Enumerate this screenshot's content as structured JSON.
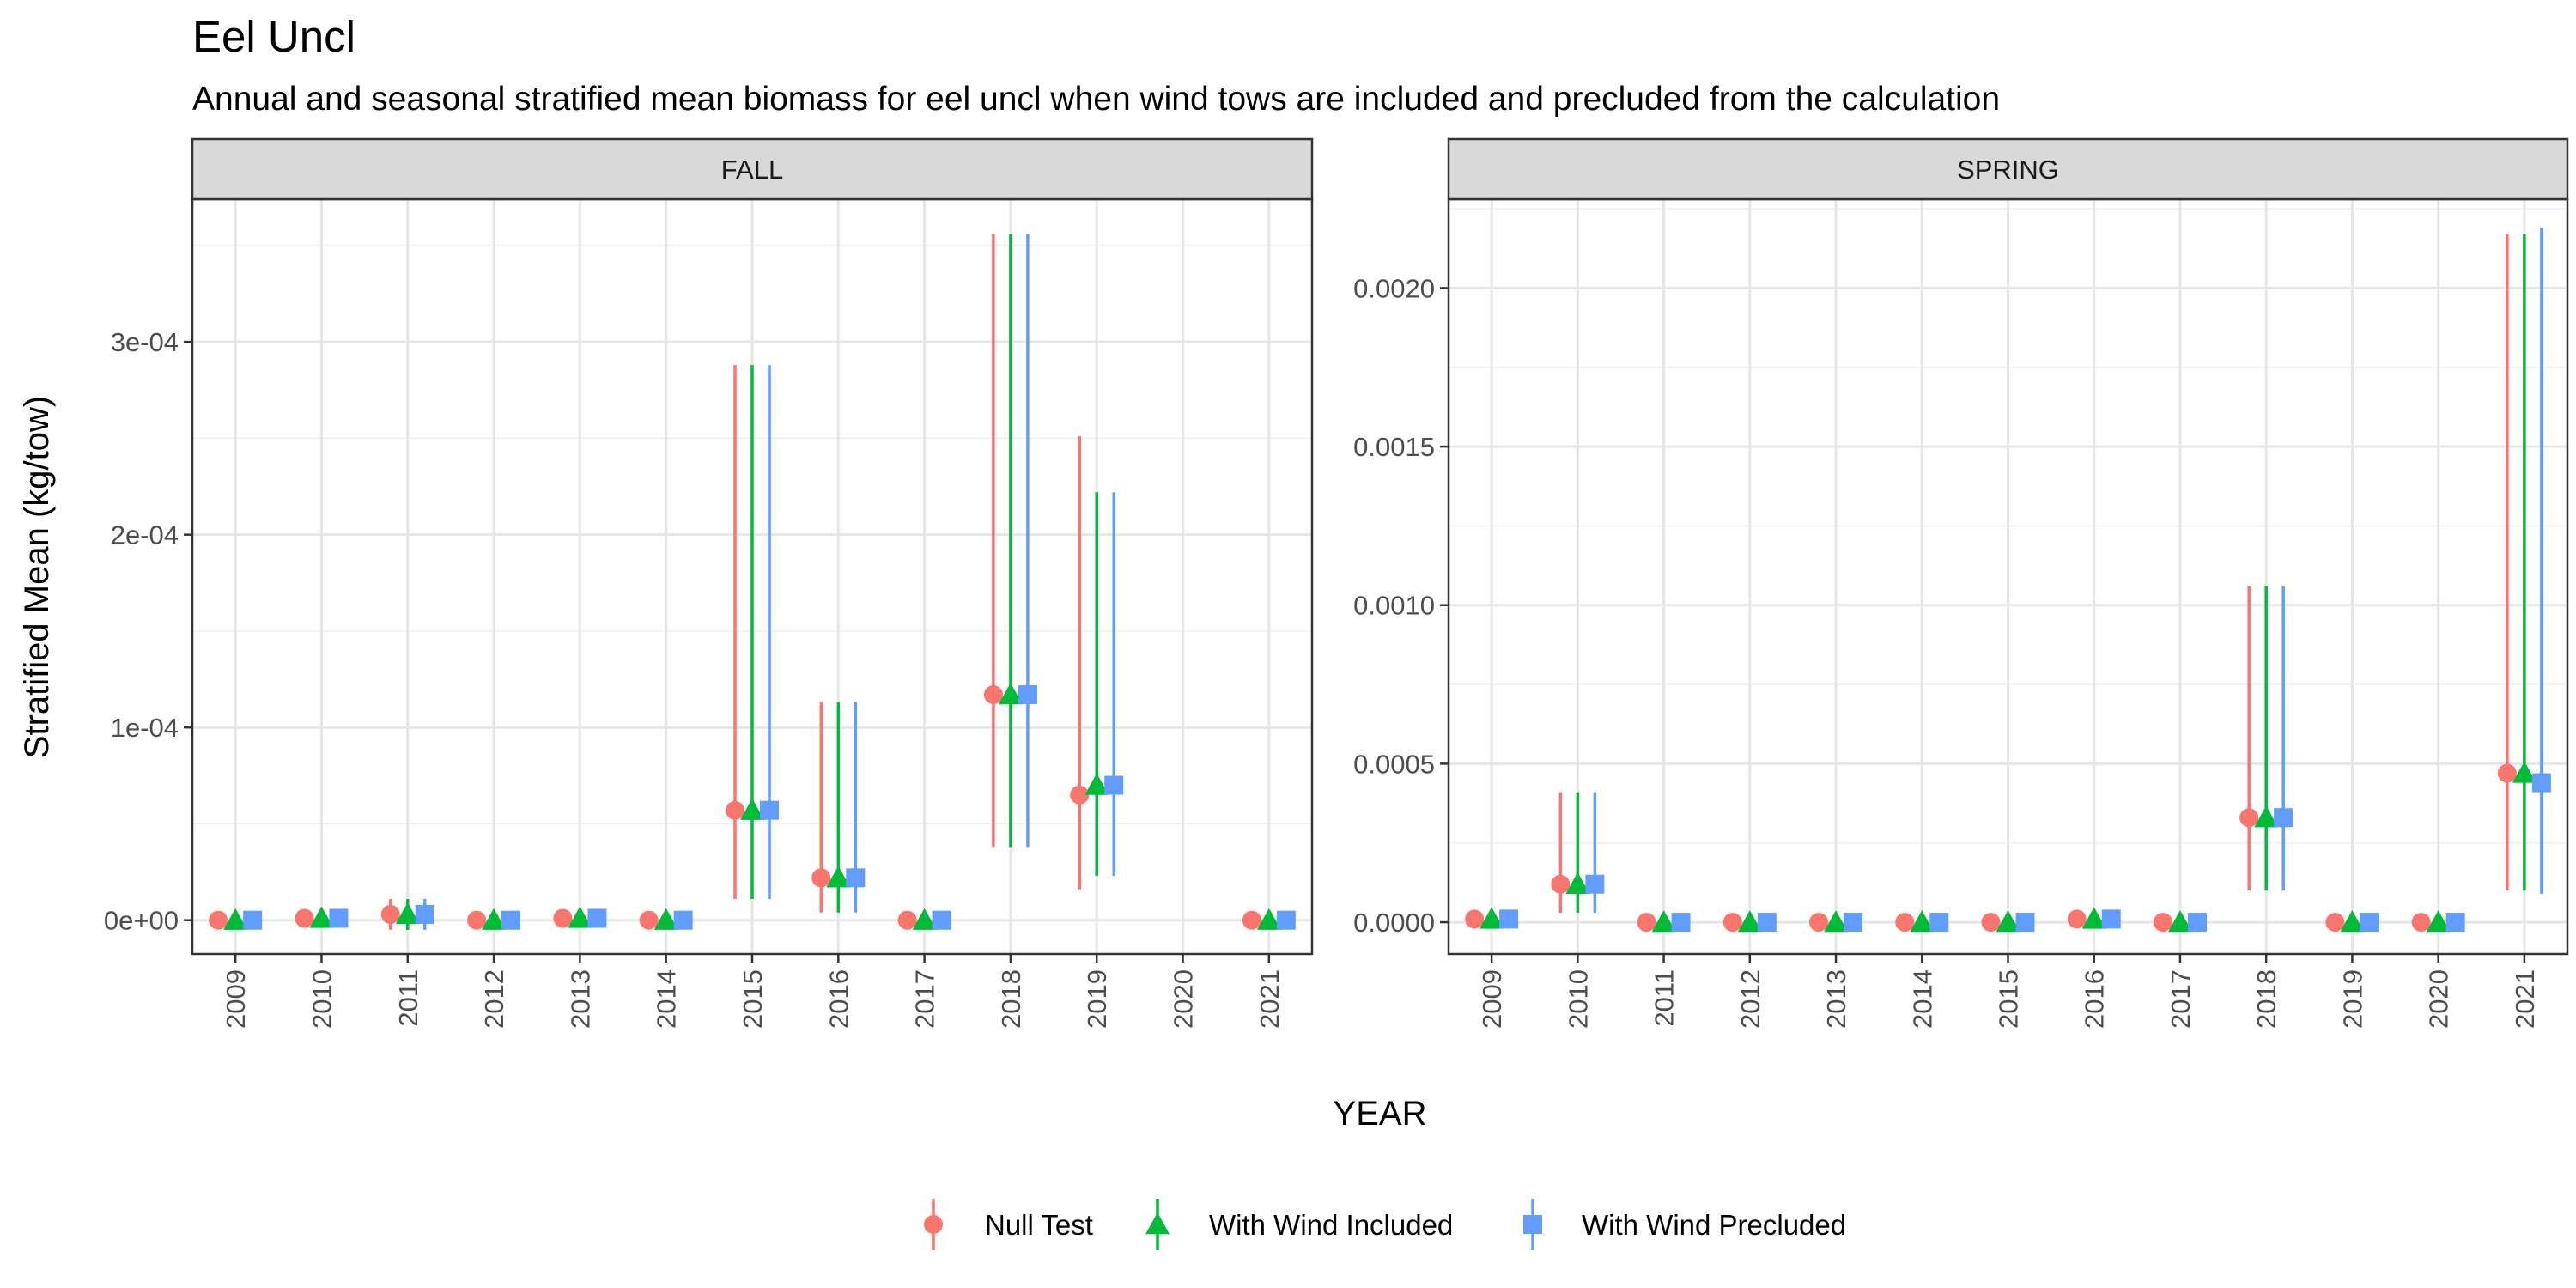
{
  "chart_data": {
    "type": "scatter",
    "title": "Eel Uncl",
    "subtitle": "Annual and seasonal stratified mean biomass for eel uncl when wind tows are included and precluded from the calculation",
    "xlabel": "YEAR",
    "ylabel": "Stratified Mean (kg/tow)",
    "grid": true,
    "legend_position": "bottom",
    "categories": [
      "2009",
      "2010",
      "2011",
      "2012",
      "2013",
      "2014",
      "2015",
      "2016",
      "2017",
      "2018",
      "2019",
      "2020",
      "2021"
    ],
    "series_styles": [
      {
        "name": "Null Test",
        "color": "#F8766D",
        "shape": "circle"
      },
      {
        "name": "With Wind Included",
        "color": "#00BA38",
        "shape": "triangle"
      },
      {
        "name": "With Wind Precluded",
        "color": "#619CFF",
        "shape": "square"
      }
    ],
    "panels": [
      {
        "strip": "FALL",
        "ylim": [
          -1.75e-05,
          0.000374
        ],
        "yticks": [
          0,
          0.0001,
          0.0002,
          0.0003
        ],
        "ytick_labels": [
          "0e+00",
          "1e-04",
          "2e-04",
          "3e-04"
        ],
        "series": [
          {
            "name": "Null Test",
            "points": [
              {
                "x": "2009",
                "y": 0,
                "lo": 0,
                "hi": 0
              },
              {
                "x": "2010",
                "y": 1e-06,
                "lo": 1e-06,
                "hi": 1e-06
              },
              {
                "x": "2011",
                "y": 3e-06,
                "lo": -5e-06,
                "hi": 1.1e-05
              },
              {
                "x": "2012",
                "y": 0,
                "lo": 0,
                "hi": 0
              },
              {
                "x": "2013",
                "y": 1e-06,
                "lo": 1e-06,
                "hi": 1e-06
              },
              {
                "x": "2014",
                "y": 0,
                "lo": 0,
                "hi": 0
              },
              {
                "x": "2015",
                "y": 5.7e-05,
                "lo": 1.1e-05,
                "hi": 0.000288
              },
              {
                "x": "2016",
                "y": 2.2e-05,
                "lo": 4e-06,
                "hi": 0.000113
              },
              {
                "x": "2017",
                "y": 0,
                "lo": 0,
                "hi": 0
              },
              {
                "x": "2018",
                "y": 0.000117,
                "lo": 3.8e-05,
                "hi": 0.000356
              },
              {
                "x": "2019",
                "y": 6.5e-05,
                "lo": 1.6e-05,
                "hi": 0.000251
              },
              {
                "x": "2021",
                "y": 0,
                "lo": 0,
                "hi": 0
              }
            ]
          },
          {
            "name": "With Wind Included",
            "points": [
              {
                "x": "2009",
                "y": 0,
                "lo": 0,
                "hi": 0
              },
              {
                "x": "2010",
                "y": 1e-06,
                "lo": 1e-06,
                "hi": 1e-06
              },
              {
                "x": "2011",
                "y": 3e-06,
                "lo": -5e-06,
                "hi": 1.1e-05
              },
              {
                "x": "2012",
                "y": 0,
                "lo": 0,
                "hi": 0
              },
              {
                "x": "2013",
                "y": 1e-06,
                "lo": 1e-06,
                "hi": 1e-06
              },
              {
                "x": "2014",
                "y": 0,
                "lo": 0,
                "hi": 0
              },
              {
                "x": "2015",
                "y": 5.7e-05,
                "lo": 1.1e-05,
                "hi": 0.000288
              },
              {
                "x": "2016",
                "y": 2.2e-05,
                "lo": 4e-06,
                "hi": 0.000113
              },
              {
                "x": "2017",
                "y": 0,
                "lo": 0,
                "hi": 0
              },
              {
                "x": "2018",
                "y": 0.000117,
                "lo": 3.8e-05,
                "hi": 0.000356
              },
              {
                "x": "2019",
                "y": 7e-05,
                "lo": 2.3e-05,
                "hi": 0.000222
              },
              {
                "x": "2021",
                "y": 0,
                "lo": 0,
                "hi": 0
              }
            ]
          },
          {
            "name": "With Wind Precluded",
            "points": [
              {
                "x": "2009",
                "y": 0,
                "lo": 0,
                "hi": 0
              },
              {
                "x": "2010",
                "y": 1e-06,
                "lo": 1e-06,
                "hi": 1e-06
              },
              {
                "x": "2011",
                "y": 3e-06,
                "lo": -5e-06,
                "hi": 1.1e-05
              },
              {
                "x": "2012",
                "y": 0,
                "lo": 0,
                "hi": 0
              },
              {
                "x": "2013",
                "y": 1e-06,
                "lo": 1e-06,
                "hi": 1e-06
              },
              {
                "x": "2014",
                "y": 0,
                "lo": 0,
                "hi": 0
              },
              {
                "x": "2015",
                "y": 5.7e-05,
                "lo": 1.1e-05,
                "hi": 0.000288
              },
              {
                "x": "2016",
                "y": 2.2e-05,
                "lo": 4e-06,
                "hi": 0.000113
              },
              {
                "x": "2017",
                "y": 0,
                "lo": 0,
                "hi": 0
              },
              {
                "x": "2018",
                "y": 0.000117,
                "lo": 3.8e-05,
                "hi": 0.000356
              },
              {
                "x": "2019",
                "y": 7e-05,
                "lo": 2.3e-05,
                "hi": 0.000222
              },
              {
                "x": "2021",
                "y": 0,
                "lo": 0,
                "hi": 0
              }
            ]
          }
        ]
      },
      {
        "strip": "SPRING",
        "ylim": [
          -0.0001,
          0.00228
        ],
        "yticks": [
          0,
          0.0005,
          0.001,
          0.0015,
          0.002
        ],
        "ytick_labels": [
          "0.0000",
          "0.0005",
          "0.0010",
          "0.0015",
          "0.0020"
        ],
        "series": [
          {
            "name": "Null Test",
            "points": [
              {
                "x": "2009",
                "y": 1e-05,
                "lo": 1e-05,
                "hi": 1e-05
              },
              {
                "x": "2010",
                "y": 0.00012,
                "lo": 3e-05,
                "hi": 0.00041
              },
              {
                "x": "2011",
                "y": 0,
                "lo": 0,
                "hi": 0
              },
              {
                "x": "2012",
                "y": 0,
                "lo": 0,
                "hi": 0
              },
              {
                "x": "2013",
                "y": 0,
                "lo": 0,
                "hi": 0
              },
              {
                "x": "2014",
                "y": 0,
                "lo": 0,
                "hi": 0
              },
              {
                "x": "2015",
                "y": 0,
                "lo": 0,
                "hi": 0
              },
              {
                "x": "2016",
                "y": 1e-05,
                "lo": 1e-05,
                "hi": 1e-05
              },
              {
                "x": "2017",
                "y": 0,
                "lo": 0,
                "hi": 0
              },
              {
                "x": "2018",
                "y": 0.00033,
                "lo": 0.0001,
                "hi": 0.00106
              },
              {
                "x": "2019",
                "y": 0,
                "lo": 0,
                "hi": 0
              },
              {
                "x": "2020",
                "y": 0,
                "lo": 0,
                "hi": 0
              },
              {
                "x": "2021",
                "y": 0.00047,
                "lo": 0.0001,
                "hi": 0.00217
              }
            ]
          },
          {
            "name": "With Wind Included",
            "points": [
              {
                "x": "2009",
                "y": 1e-05,
                "lo": 1e-05,
                "hi": 1e-05
              },
              {
                "x": "2010",
                "y": 0.00012,
                "lo": 3e-05,
                "hi": 0.00041
              },
              {
                "x": "2011",
                "y": 0,
                "lo": 0,
                "hi": 0
              },
              {
                "x": "2012",
                "y": 0,
                "lo": 0,
                "hi": 0
              },
              {
                "x": "2013",
                "y": 0,
                "lo": 0,
                "hi": 0
              },
              {
                "x": "2014",
                "y": 0,
                "lo": 0,
                "hi": 0
              },
              {
                "x": "2015",
                "y": 0,
                "lo": 0,
                "hi": 0
              },
              {
                "x": "2016",
                "y": 1e-05,
                "lo": 1e-05,
                "hi": 1e-05
              },
              {
                "x": "2017",
                "y": 0,
                "lo": 0,
                "hi": 0
              },
              {
                "x": "2018",
                "y": 0.00033,
                "lo": 0.0001,
                "hi": 0.00106
              },
              {
                "x": "2019",
                "y": 0,
                "lo": 0,
                "hi": 0
              },
              {
                "x": "2020",
                "y": 0,
                "lo": 0,
                "hi": 0
              },
              {
                "x": "2021",
                "y": 0.00047,
                "lo": 0.0001,
                "hi": 0.00217
              }
            ]
          },
          {
            "name": "With Wind Precluded",
            "points": [
              {
                "x": "2009",
                "y": 1e-05,
                "lo": 1e-05,
                "hi": 1e-05
              },
              {
                "x": "2010",
                "y": 0.00012,
                "lo": 3e-05,
                "hi": 0.00041
              },
              {
                "x": "2011",
                "y": 0,
                "lo": 0,
                "hi": 0
              },
              {
                "x": "2012",
                "y": 0,
                "lo": 0,
                "hi": 0
              },
              {
                "x": "2013",
                "y": 0,
                "lo": 0,
                "hi": 0
              },
              {
                "x": "2014",
                "y": 0,
                "lo": 0,
                "hi": 0
              },
              {
                "x": "2015",
                "y": 0,
                "lo": 0,
                "hi": 0
              },
              {
                "x": "2016",
                "y": 1e-05,
                "lo": 1e-05,
                "hi": 1e-05
              },
              {
                "x": "2017",
                "y": 0,
                "lo": 0,
                "hi": 0
              },
              {
                "x": "2018",
                "y": 0.00033,
                "lo": 0.0001,
                "hi": 0.00106
              },
              {
                "x": "2019",
                "y": 0,
                "lo": 0,
                "hi": 0
              },
              {
                "x": "2020",
                "y": 0,
                "lo": 0,
                "hi": 0
              },
              {
                "x": "2021",
                "y": 0.00044,
                "lo": 9e-05,
                "hi": 0.00219
              }
            ]
          }
        ]
      }
    ]
  }
}
